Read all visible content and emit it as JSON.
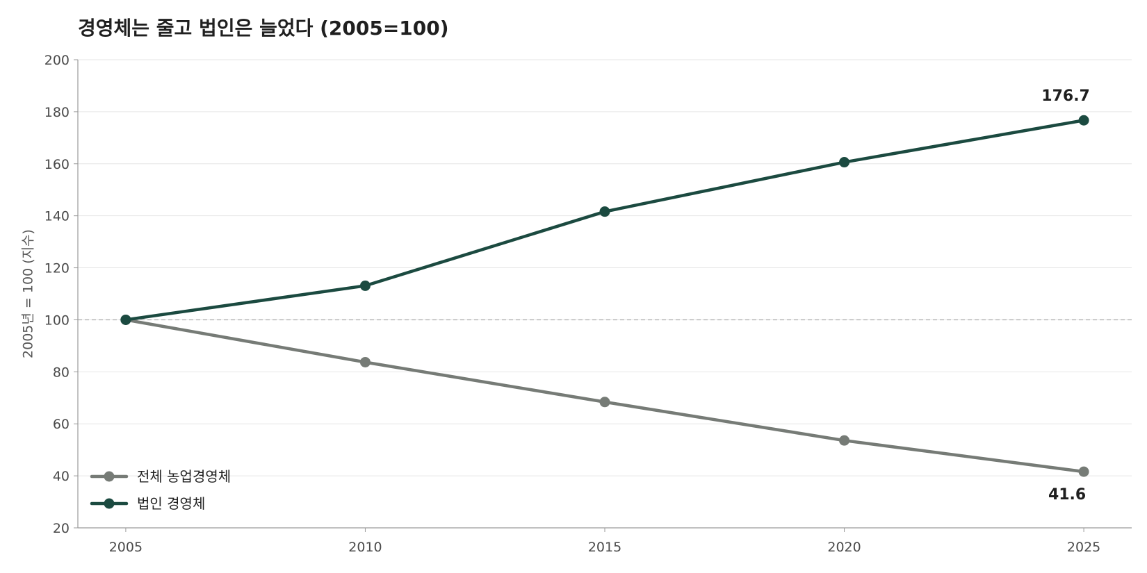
{
  "chart_data": {
    "type": "line",
    "title": "경영체는 줄고 법인은 늘었다 (2005=100)",
    "xlabel": "",
    "ylabel": "2005년 = 100 (지수)",
    "x": [
      2005,
      2010,
      2015,
      2020,
      2025
    ],
    "xlim": [
      2004,
      2026
    ],
    "ylim": [
      20,
      200
    ],
    "y_ticks": [
      20,
      40,
      60,
      80,
      100,
      120,
      140,
      160,
      180,
      200
    ],
    "grid": "horizontal",
    "reference_line": 100,
    "legend_position": "bottom-left",
    "series": [
      {
        "name": "전체 농업경영체",
        "color": "#767b76",
        "values": [
          100,
          83.7,
          68.4,
          53.6,
          41.6
        ]
      },
      {
        "name": "법인 경영체",
        "color": "#1b4a40",
        "values": [
          100,
          113.1,
          141.6,
          160.6,
          176.7
        ]
      }
    ],
    "end_labels": [
      "41.6",
      "176.7"
    ]
  }
}
